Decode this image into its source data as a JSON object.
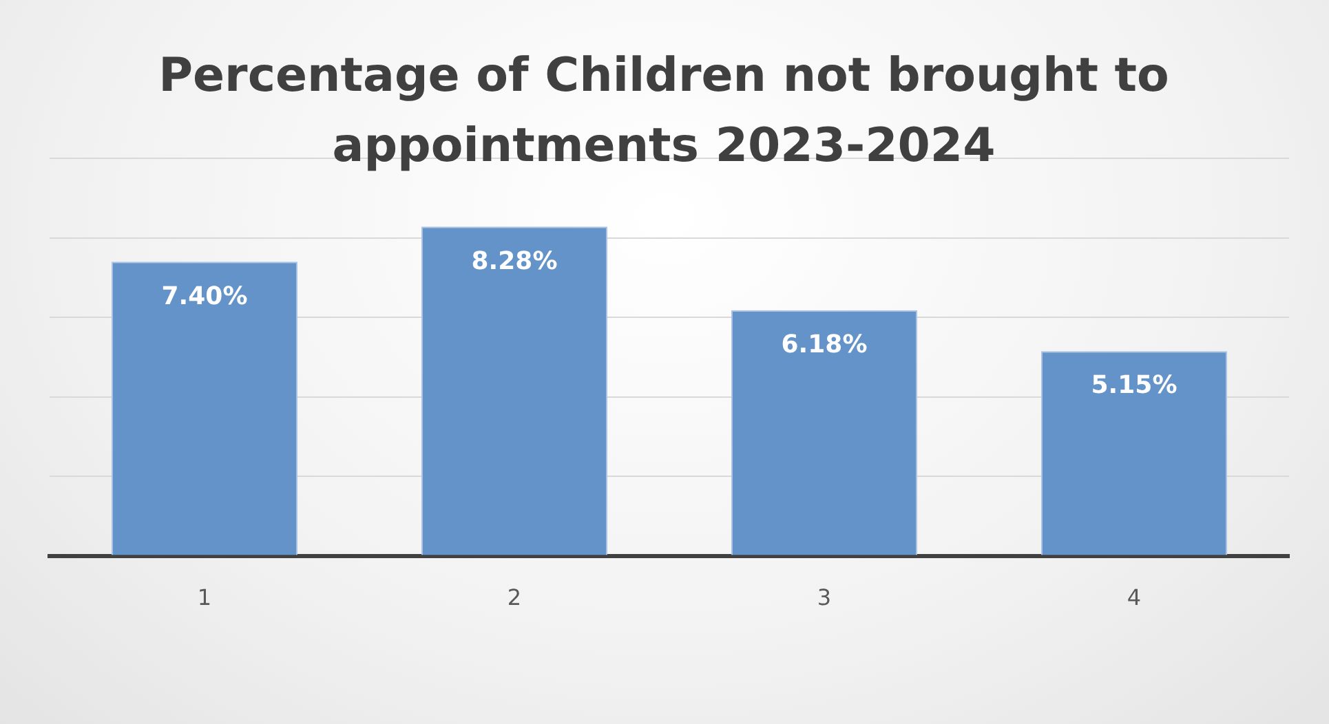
{
  "chart_data": {
    "type": "bar",
    "title": "Percentage of Children not brought to appointments 2023-2024",
    "categories": [
      "1",
      "2",
      "3",
      "4"
    ],
    "values": [
      7.4,
      8.28,
      6.18,
      5.15
    ],
    "value_labels": [
      "7.40%",
      "8.28%",
      "6.18%",
      "5.15%"
    ],
    "color": "#6393c9",
    "ylim": [
      0,
      10
    ],
    "yticks": [
      {
        "value": 0,
        "label": null
      },
      {
        "value": 2,
        "label": null
      },
      {
        "value": 4,
        "label": null
      },
      {
        "value": 6,
        "label": null
      },
      {
        "value": 8,
        "label": null
      },
      {
        "value": 10,
        "label": null
      }
    ],
    "tick_labels": "x",
    "grid": "y",
    "legend": false
  }
}
